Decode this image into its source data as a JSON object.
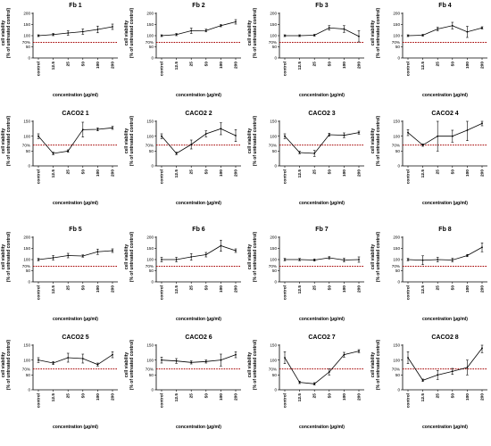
{
  "axis_labels": {
    "y_line1": "cell viability",
    "y_line2": "(% of untreated control)",
    "x": "concentration (µg/ml)",
    "ref_label": "70%"
  },
  "chart_data": [
    {
      "type": "line",
      "title": "Fb 1",
      "categories": [
        "control",
        "12.5",
        "25",
        "50",
        "100",
        "200"
      ],
      "values": [
        100,
        105,
        112,
        118,
        128,
        140
      ],
      "errors": [
        4,
        5,
        10,
        12,
        15,
        12
      ],
      "yticks": [
        0,
        50,
        100,
        150,
        200
      ],
      "ylim": [
        0,
        200
      ],
      "reference_line": 70,
      "xlabel": "concentration (µg/ml)",
      "ylabel": "cell viability (% of untreated control)"
    },
    {
      "type": "line",
      "title": "Fb 2",
      "categories": [
        "control",
        "12.5",
        "25",
        "50",
        "100",
        "200"
      ],
      "values": [
        100,
        105,
        122,
        123,
        145,
        162
      ],
      "errors": [
        4,
        5,
        12,
        6,
        5,
        10
      ],
      "yticks": [
        0,
        50,
        100,
        150,
        200
      ],
      "ylim": [
        0,
        200
      ],
      "reference_line": 70,
      "xlabel": "concentration (µg/ml)",
      "ylabel": "cell viability (% of untreated control)"
    },
    {
      "type": "line",
      "title": "Fb 3",
      "categories": [
        "control",
        "12.5",
        "25",
        "50",
        "100",
        "200"
      ],
      "values": [
        100,
        100,
        102,
        135,
        130,
        97
      ],
      "errors": [
        4,
        4,
        4,
        10,
        15,
        25
      ],
      "yticks": [
        0,
        50,
        100,
        150,
        200
      ],
      "ylim": [
        0,
        200
      ],
      "reference_line": 70,
      "xlabel": "concentration (µg/ml)",
      "ylabel": "cell viability (% of untreated control)"
    },
    {
      "type": "line",
      "title": "Fb 4",
      "categories": [
        "control",
        "12.5",
        "25",
        "50",
        "100",
        "200"
      ],
      "values": [
        100,
        102,
        130,
        145,
        117,
        135
      ],
      "errors": [
        4,
        4,
        8,
        15,
        25,
        5
      ],
      "yticks": [
        0,
        50,
        100,
        150,
        200
      ],
      "ylim": [
        0,
        200
      ],
      "reference_line": 70,
      "xlabel": "concentration (µg/ml)",
      "ylabel": "cell viability (% of untreated control)"
    },
    {
      "type": "line",
      "title": "CACO2 1",
      "categories": [
        "control",
        "12.5",
        "25",
        "50",
        "100",
        "200"
      ],
      "values": [
        100,
        42,
        50,
        122,
        123,
        128
      ],
      "errors": [
        8,
        4,
        4,
        25,
        5,
        5
      ],
      "yticks": [
        0,
        50,
        100,
        150
      ],
      "ylim": [
        0,
        150
      ],
      "reference_line": 70,
      "xlabel": "concentration (µg/ml)",
      "ylabel": "cell viability (% of untreated control)"
    },
    {
      "type": "line",
      "title": "CACO2 2",
      "categories": [
        "control",
        "12.5",
        "25",
        "50",
        "100",
        "200"
      ],
      "values": [
        100,
        42,
        72,
        108,
        125,
        102
      ],
      "errors": [
        8,
        4,
        15,
        10,
        20,
        20
      ],
      "yticks": [
        0,
        50,
        100,
        150
      ],
      "ylim": [
        0,
        150
      ],
      "reference_line": 70,
      "xlabel": "concentration (µg/ml)",
      "ylabel": "cell viability (% of untreated control)"
    },
    {
      "type": "line",
      "title": "CACO2 3",
      "categories": [
        "control",
        "12.5",
        "25",
        "50",
        "100",
        "200"
      ],
      "values": [
        100,
        45,
        42,
        105,
        103,
        112
      ],
      "errors": [
        8,
        4,
        10,
        5,
        8,
        5
      ],
      "yticks": [
        0,
        50,
        100,
        150
      ],
      "ylim": [
        0,
        150
      ],
      "reference_line": 70,
      "xlabel": "concentration (µg/ml)",
      "ylabel": "cell viability (% of untreated control)"
    },
    {
      "type": "line",
      "title": "CACO2 4",
      "categories": [
        "control",
        "12.5",
        "25",
        "50",
        "100",
        "200"
      ],
      "values": [
        112,
        70,
        100,
        100,
        120,
        143
      ],
      "errors": [
        10,
        4,
        50,
        20,
        35,
        8
      ],
      "yticks": [
        0,
        50,
        100,
        150
      ],
      "ylim": [
        0,
        150
      ],
      "reference_line": 70,
      "xlabel": "concentration (µg/ml)",
      "ylabel": "cell viability (% of untreated control)"
    },
    {
      "type": "line",
      "title": "Fb 5",
      "categories": [
        "control",
        "12.5",
        "25",
        "50",
        "100",
        "200"
      ],
      "values": [
        100,
        108,
        118,
        116,
        135,
        140
      ],
      "errors": [
        5,
        10,
        10,
        5,
        12,
        8
      ],
      "yticks": [
        0,
        50,
        100,
        150,
        200
      ],
      "ylim": [
        0,
        200
      ],
      "reference_line": 70,
      "xlabel": "concentration (µg/ml)",
      "ylabel": "cell viability (% of untreated control)"
    },
    {
      "type": "line",
      "title": "Fb 6",
      "categories": [
        "control",
        "12.5",
        "25",
        "50",
        "100",
        "200"
      ],
      "values": [
        100,
        100,
        112,
        122,
        162,
        140
      ],
      "errors": [
        10,
        10,
        15,
        10,
        25,
        8
      ],
      "yticks": [
        0,
        50,
        100,
        150,
        200
      ],
      "ylim": [
        0,
        200
      ],
      "reference_line": 70,
      "xlabel": "concentration (µg/ml)",
      "ylabel": "cell viability (% of untreated control)"
    },
    {
      "type": "line",
      "title": "Fb 7",
      "categories": [
        "control",
        "12.5",
        "25",
        "50",
        "100",
        "200"
      ],
      "values": [
        100,
        100,
        98,
        108,
        98,
        100
      ],
      "errors": [
        5,
        5,
        5,
        5,
        8,
        12
      ],
      "yticks": [
        0,
        50,
        100,
        150,
        200
      ],
      "ylim": [
        0,
        200
      ],
      "reference_line": 70,
      "xlabel": "concentration (µg/ml)",
      "ylabel": "cell viability (% of untreated control)"
    },
    {
      "type": "line",
      "title": "Fb 8",
      "categories": [
        "control",
        "12.5",
        "25",
        "50",
        "100",
        "200"
      ],
      "values": [
        100,
        97,
        100,
        98,
        118,
        155
      ],
      "errors": [
        5,
        20,
        10,
        8,
        5,
        20
      ],
      "yticks": [
        0,
        50,
        100,
        150,
        200
      ],
      "ylim": [
        0,
        200
      ],
      "reference_line": 70,
      "xlabel": "concentration (µg/ml)",
      "ylabel": "cell viability (% of untreated control)"
    },
    {
      "type": "line",
      "title": "CACO2 5",
      "categories": [
        "control",
        "12.5",
        "25",
        "50",
        "100",
        "200"
      ],
      "values": [
        100,
        90,
        108,
        105,
        85,
        118
      ],
      "errors": [
        8,
        5,
        15,
        15,
        5,
        10
      ],
      "yticks": [
        0,
        50,
        100,
        150
      ],
      "ylim": [
        0,
        150
      ],
      "reference_line": 70,
      "xlabel": "concentration (µg/ml)",
      "ylabel": "cell viability (% of untreated control)"
    },
    {
      "type": "line",
      "title": "CACO2 6",
      "categories": [
        "control",
        "12.5",
        "25",
        "50",
        "100",
        "200"
      ],
      "values": [
        100,
        97,
        92,
        95,
        100,
        118
      ],
      "errors": [
        10,
        8,
        5,
        5,
        20,
        10
      ],
      "yticks": [
        0,
        50,
        100,
        150
      ],
      "ylim": [
        0,
        150
      ],
      "reference_line": 70,
      "xlabel": "concentration (µg/ml)",
      "ylabel": "cell viability (% of untreated control)"
    },
    {
      "type": "line",
      "title": "CACO2 7",
      "categories": [
        "control",
        "12.5",
        "25",
        "50",
        "100",
        "200"
      ],
      "values": [
        108,
        25,
        20,
        60,
        118,
        130
      ],
      "errors": [
        20,
        4,
        4,
        10,
        8,
        5
      ],
      "yticks": [
        0,
        50,
        100,
        150
      ],
      "ylim": [
        0,
        150
      ],
      "reference_line": 70,
      "xlabel": "concentration (µg/ml)",
      "ylabel": "cell viability (% of untreated control)"
    },
    {
      "type": "line",
      "title": "CACO2 8",
      "categories": [
        "control",
        "12.5",
        "25",
        "50",
        "100",
        "200"
      ],
      "values": [
        108,
        32,
        50,
        62,
        75,
        140
      ],
      "errors": [
        20,
        4,
        15,
        10,
        25,
        15
      ],
      "yticks": [
        0,
        50,
        100,
        150
      ],
      "ylim": [
        0,
        150
      ],
      "reference_line": 70,
      "xlabel": "concentration (µg/ml)",
      "ylabel": "cell viability (% of untreated control)"
    }
  ],
  "colors": {
    "line": "#000000",
    "reference": "#a50000",
    "text": "#000000"
  }
}
